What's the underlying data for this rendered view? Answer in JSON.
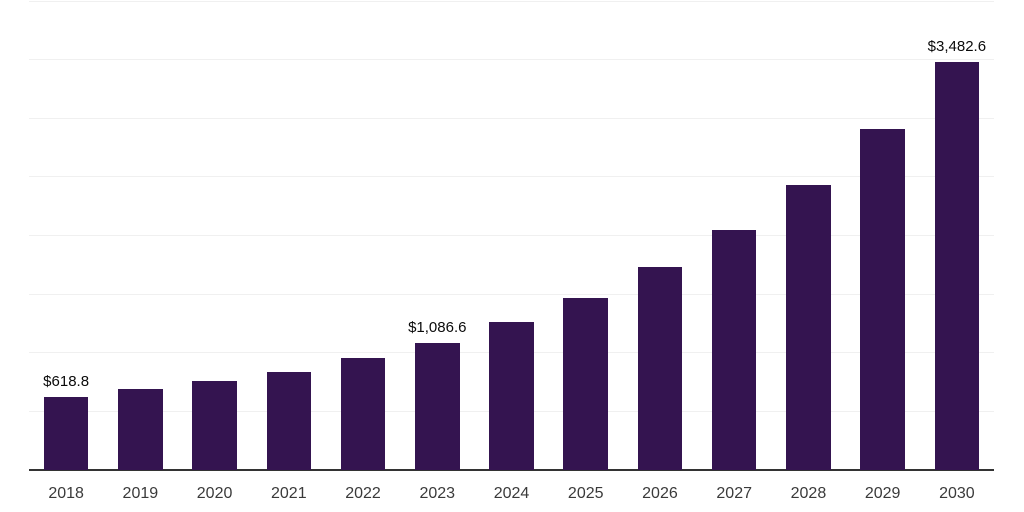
{
  "chart": {
    "background_color": "#ffffff",
    "bar_color": "#341450",
    "axis_color": "#333333",
    "gridline_color": "#f0f0f0",
    "tick_label_color": "#3a3a3a",
    "data_label_color": "#0a0a0a"
  },
  "chart_data": {
    "type": "bar",
    "title": "",
    "xlabel": "",
    "ylabel": "",
    "categories": [
      "2018",
      "2019",
      "2020",
      "2021",
      "2022",
      "2023",
      "2024",
      "2025",
      "2026",
      "2027",
      "2028",
      "2029",
      "2030"
    ],
    "values": [
      618.8,
      688.2,
      759.1,
      835.9,
      952.8,
      1086.6,
      1259.8,
      1464.5,
      1734.1,
      2044.6,
      2428.4,
      2906.1,
      3482.6
    ],
    "data_labels": [
      "$618.8",
      null,
      null,
      null,
      null,
      "$1,086.6",
      null,
      null,
      null,
      null,
      null,
      null,
      "$3,482.6"
    ],
    "labeled_values": {
      "2018": "$618.8",
      "2023": "$1,086.6",
      "2030": "$3,482.6"
    },
    "ylim": [
      0,
      4000
    ],
    "gridline_step": 500,
    "grid": true,
    "legend_position": "none",
    "y_axis_tick_labels_visible": false,
    "currency_prefix": "$"
  }
}
